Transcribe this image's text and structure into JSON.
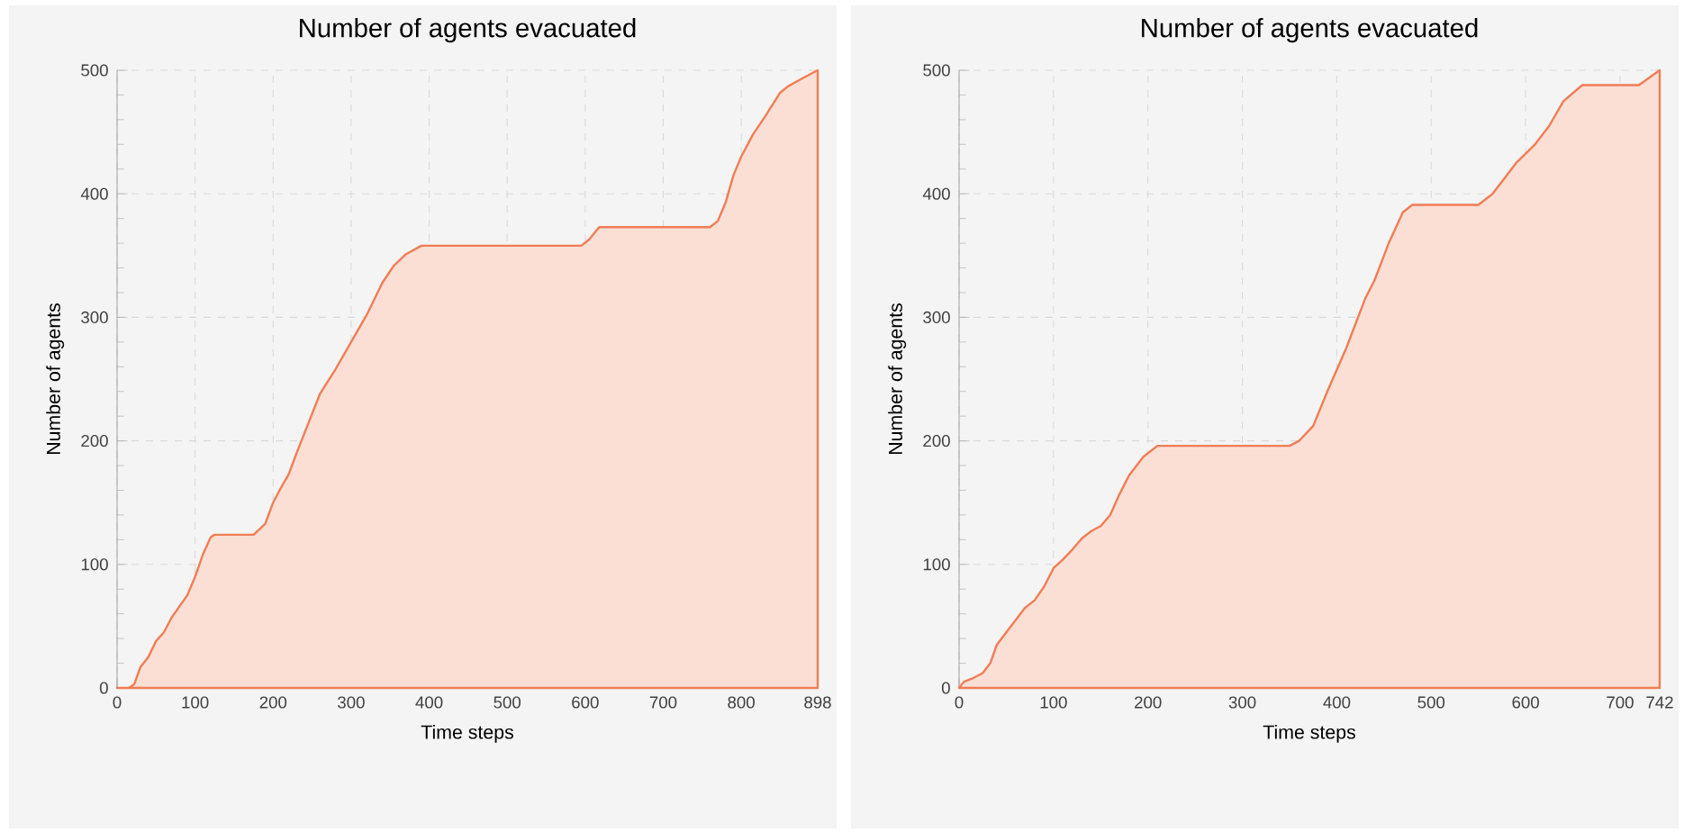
{
  "chart_data": [
    {
      "type": "area",
      "title": "Number of agents evacuated",
      "xlabel": "Time steps",
      "ylabel": "Number of agents",
      "color": "#ef7d55",
      "grid": true,
      "xlim": [
        0,
        898
      ],
      "ylim": [
        0,
        500
      ],
      "xticks": [
        0,
        100,
        200,
        300,
        400,
        500,
        600,
        700,
        800,
        898
      ],
      "yticks": [
        0,
        100,
        200,
        300,
        400,
        500
      ],
      "x": [
        0,
        15,
        22,
        30,
        40,
        50,
        60,
        70,
        90,
        100,
        110,
        120,
        125,
        175,
        190,
        200,
        210,
        220,
        230,
        250,
        260,
        280,
        300,
        320,
        340,
        355,
        370,
        390,
        595,
        605,
        618,
        760,
        770,
        780,
        790,
        800,
        815,
        830,
        850,
        860,
        880,
        898
      ],
      "values": [
        0,
        0,
        3,
        17,
        25,
        38,
        45,
        57,
        75,
        90,
        108,
        122,
        124,
        124,
        133,
        150,
        162,
        173,
        190,
        222,
        238,
        258,
        280,
        302,
        328,
        342,
        351,
        358,
        358,
        363,
        373,
        373,
        378,
        393,
        415,
        430,
        448,
        462,
        482,
        487,
        494,
        500
      ]
    },
    {
      "type": "area",
      "title": "Number of agents evacuated",
      "xlabel": "Time steps",
      "ylabel": "Number of agents",
      "color": "#ef7d55",
      "grid": true,
      "xlim": [
        0,
        742
      ],
      "ylim": [
        0,
        500
      ],
      "xticks": [
        0,
        100,
        200,
        300,
        400,
        500,
        600,
        700,
        742
      ],
      "yticks": [
        0,
        100,
        200,
        300,
        400,
        500
      ],
      "x": [
        0,
        5,
        15,
        25,
        33,
        40,
        50,
        60,
        70,
        80,
        90,
        100,
        110,
        120,
        130,
        140,
        150,
        160,
        170,
        180,
        195,
        210,
        350,
        360,
        375,
        390,
        410,
        430,
        440,
        455,
        470,
        480,
        550,
        565,
        590,
        610,
        625,
        640,
        660,
        720,
        742
      ],
      "values": [
        0,
        5,
        8,
        12,
        20,
        35,
        45,
        55,
        65,
        71,
        82,
        97,
        104,
        112,
        121,
        127,
        131,
        140,
        157,
        172,
        187,
        196,
        196,
        200,
        212,
        240,
        275,
        315,
        330,
        360,
        385,
        391,
        391,
        400,
        425,
        440,
        455,
        475,
        488,
        488,
        500
      ]
    }
  ]
}
